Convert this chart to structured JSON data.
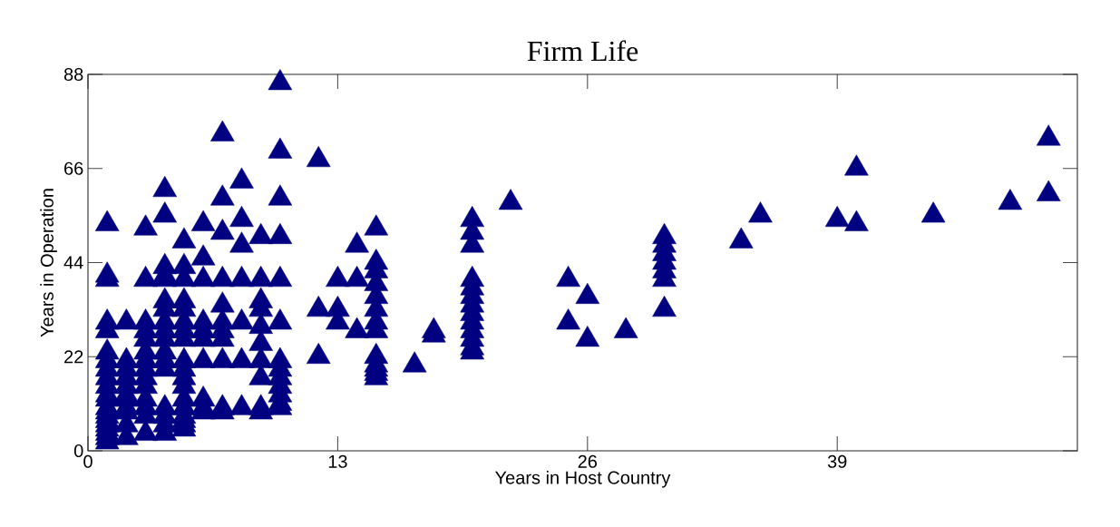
{
  "chart_data": {
    "type": "scatter",
    "title": "Firm Life",
    "xlabel": "Years in Host Country",
    "ylabel": "Years in Operation",
    "color": "#000080",
    "marker": "triangle",
    "xlim": [
      0,
      51.5
    ],
    "ylim": [
      0,
      88
    ],
    "xticks": [
      0,
      13,
      26,
      39
    ],
    "yticks": [
      0,
      22,
      44,
      66,
      88
    ],
    "x": [
      1,
      1,
      1,
      1,
      1,
      1,
      1,
      1,
      1,
      1,
      1,
      1,
      1,
      1,
      1,
      1,
      1,
      1,
      1,
      1,
      1,
      2,
      2,
      2,
      2,
      2,
      2,
      2,
      2,
      2,
      2,
      2,
      3,
      3,
      3,
      3,
      3,
      3,
      3,
      3,
      3,
      3,
      3,
      3,
      3,
      3,
      4,
      4,
      4,
      4,
      4,
      4,
      4,
      4,
      4,
      4,
      4,
      4,
      4,
      4,
      4,
      4,
      4,
      5,
      5,
      5,
      5,
      5,
      5,
      5,
      5,
      5,
      5,
      5,
      5,
      5,
      5,
      5,
      5,
      5,
      5,
      6,
      6,
      6,
      6,
      6,
      6,
      6,
      6,
      6,
      6,
      7,
      7,
      7,
      7,
      7,
      7,
      7,
      7,
      7,
      7,
      7,
      8,
      8,
      8,
      8,
      8,
      8,
      8,
      9,
      9,
      9,
      9,
      9,
      9,
      9,
      9,
      9,
      9,
      10,
      10,
      10,
      10,
      10,
      10,
      10,
      10,
      10,
      10,
      10,
      10,
      10,
      12,
      12,
      12,
      13,
      13,
      13,
      14,
      14,
      14,
      15,
      15,
      15,
      15,
      15,
      15,
      15,
      15,
      15,
      15,
      15,
      15,
      15,
      17,
      18,
      18,
      20,
      20,
      20,
      20,
      20,
      20,
      20,
      20,
      20,
      20,
      20,
      20,
      20,
      22,
      25,
      25,
      26,
      26,
      28,
      30,
      30,
      30,
      30,
      30,
      30,
      30,
      34,
      35,
      39,
      40,
      40,
      44,
      48,
      50,
      50
    ],
    "values": [
      53,
      41,
      40,
      30,
      28,
      23,
      21,
      19,
      17,
      15,
      13,
      12,
      10,
      9,
      8,
      7,
      6,
      5,
      4,
      3,
      2,
      30,
      21,
      19,
      17,
      15,
      13,
      12,
      10,
      9,
      6,
      3,
      52,
      40,
      30,
      28,
      26,
      23,
      21,
      19,
      17,
      15,
      12,
      10,
      8,
      4,
      61,
      55,
      43,
      41,
      40,
      35,
      33,
      30,
      28,
      26,
      23,
      21,
      19,
      10,
      8,
      6,
      4,
      49,
      43,
      40,
      35,
      33,
      30,
      28,
      26,
      21,
      19,
      17,
      15,
      12,
      10,
      8,
      7,
      6,
      5,
      53,
      45,
      40,
      30,
      28,
      26,
      21,
      12,
      10,
      9,
      74,
      59,
      51,
      40,
      34,
      30,
      28,
      26,
      21,
      10,
      9,
      63,
      54,
      48,
      40,
      30,
      21,
      10,
      50,
      40,
      35,
      33,
      29,
      25,
      21,
      17,
      10,
      9,
      86,
      70,
      59,
      50,
      40,
      30,
      21,
      19,
      17,
      15,
      13,
      11,
      10,
      68,
      33,
      22,
      40,
      33,
      30,
      48,
      40,
      28,
      52,
      44,
      42,
      39,
      36,
      33,
      30,
      28,
      22,
      20,
      19,
      18,
      17,
      20,
      28,
      27,
      54,
      51,
      48,
      40,
      38,
      36,
      34,
      32,
      30,
      28,
      26,
      24,
      23,
      58,
      40,
      30,
      36,
      26,
      28,
      50,
      48,
      46,
      44,
      42,
      40,
      33,
      49,
      55,
      54,
      66,
      53,
      55,
      58,
      73,
      60
    ]
  }
}
